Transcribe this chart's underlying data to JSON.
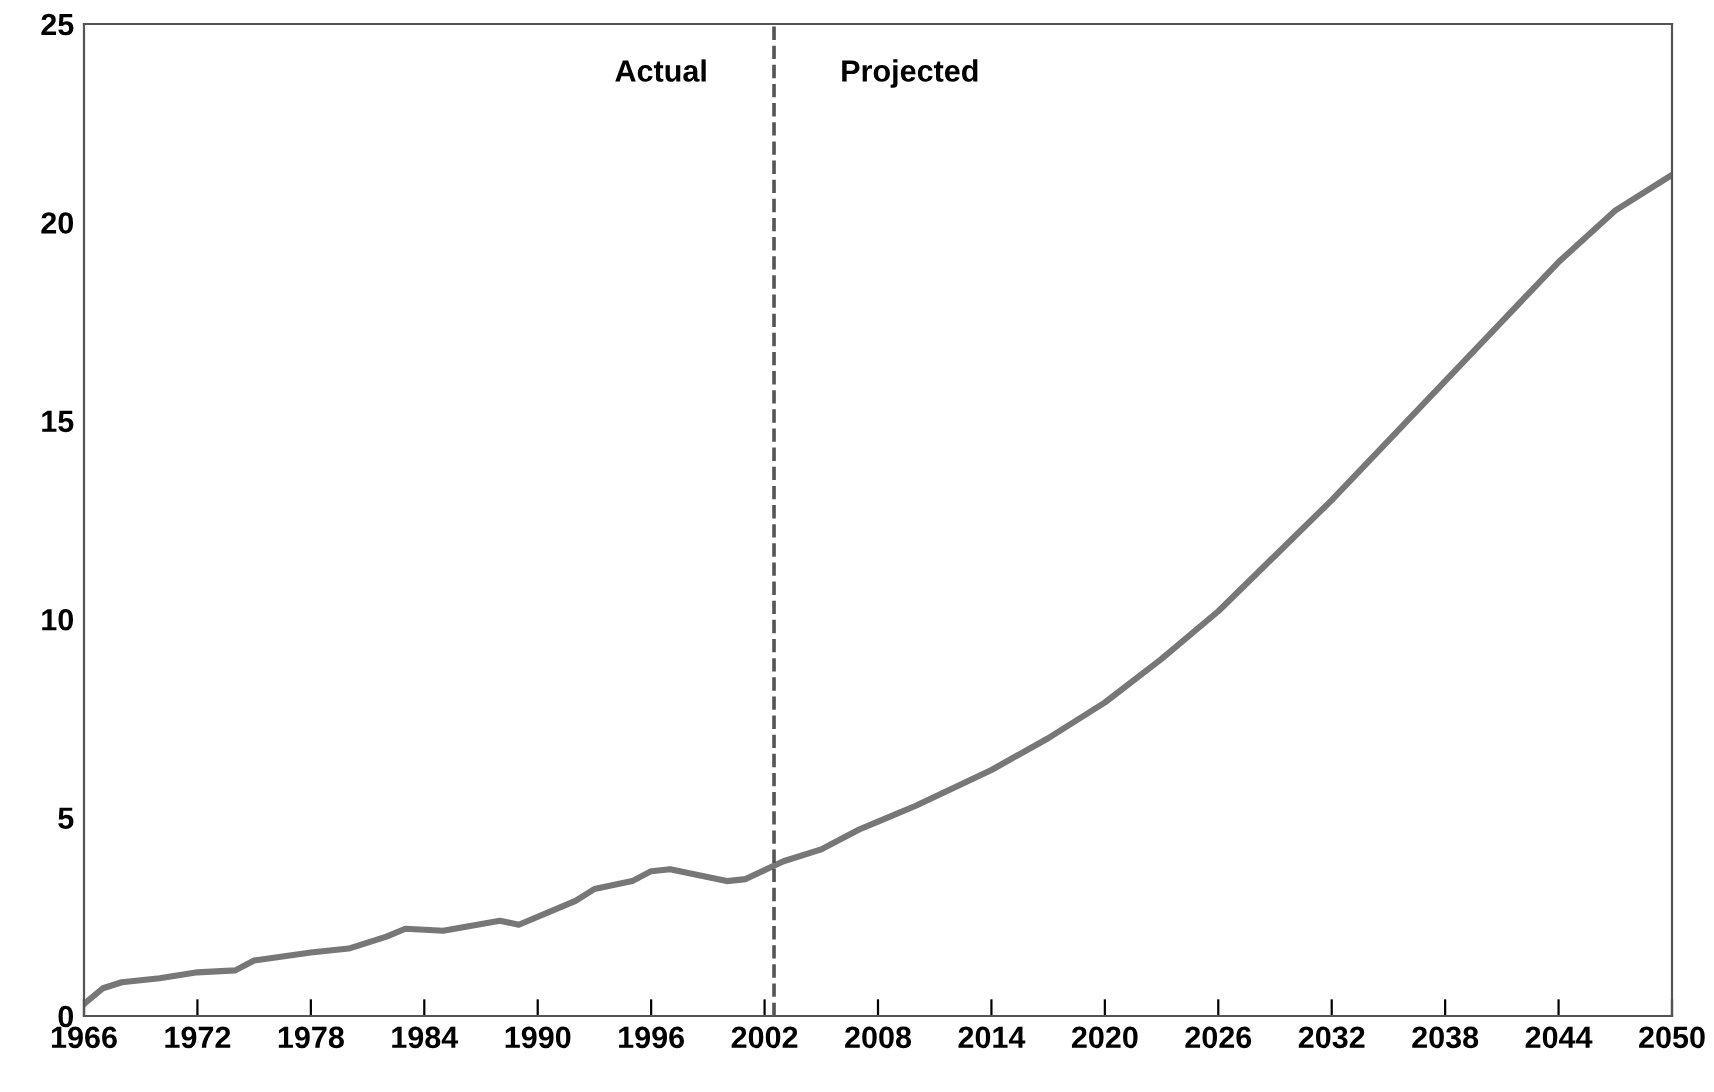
{
  "chart_data": {
    "type": "line",
    "x": [
      1966,
      1967,
      1968,
      1970,
      1972,
      1974,
      1975,
      1978,
      1980,
      1982,
      1983,
      1985,
      1988,
      1989,
      1992,
      1993,
      1995,
      1996,
      1997,
      2000,
      2001,
      2003,
      2005,
      2007,
      2008,
      2010,
      2014,
      2017,
      2020,
      2023,
      2026,
      2029,
      2032,
      2035,
      2038,
      2041,
      2044,
      2047,
      2050
    ],
    "series": [
      {
        "color": "#777777",
        "values": [
          0.3,
          0.7,
          0.85,
          0.95,
          1.1,
          1.15,
          1.4,
          1.6,
          1.7,
          2.0,
          2.2,
          2.15,
          2.4,
          2.3,
          2.9,
          3.2,
          3.4,
          3.65,
          3.7,
          3.4,
          3.45,
          3.9,
          4.2,
          4.7,
          4.9,
          5.3,
          6.2,
          7.0,
          7.9,
          9.0,
          10.2,
          11.6,
          13.0,
          14.5,
          16.0,
          17.5,
          19.0,
          20.3,
          21.2
        ]
      }
    ],
    "xlim": [
      1966,
      2050
    ],
    "xticks": [
      1966,
      1972,
      1978,
      1984,
      1990,
      1996,
      2002,
      2008,
      2014,
      2020,
      2026,
      2032,
      2038,
      2044,
      2050
    ],
    "ylim": [
      0,
      25
    ],
    "yticks": [
      0,
      5,
      10,
      15,
      20,
      25
    ],
    "ref_lines": [
      {
        "axis": "x",
        "value": 2002.5,
        "color": "#555555",
        "line_style": "dashed"
      }
    ],
    "annotations": [
      "Actual",
      "Projected"
    ],
    "grid": false,
    "legend": false,
    "marker": "none",
    "line_style": "solid"
  }
}
